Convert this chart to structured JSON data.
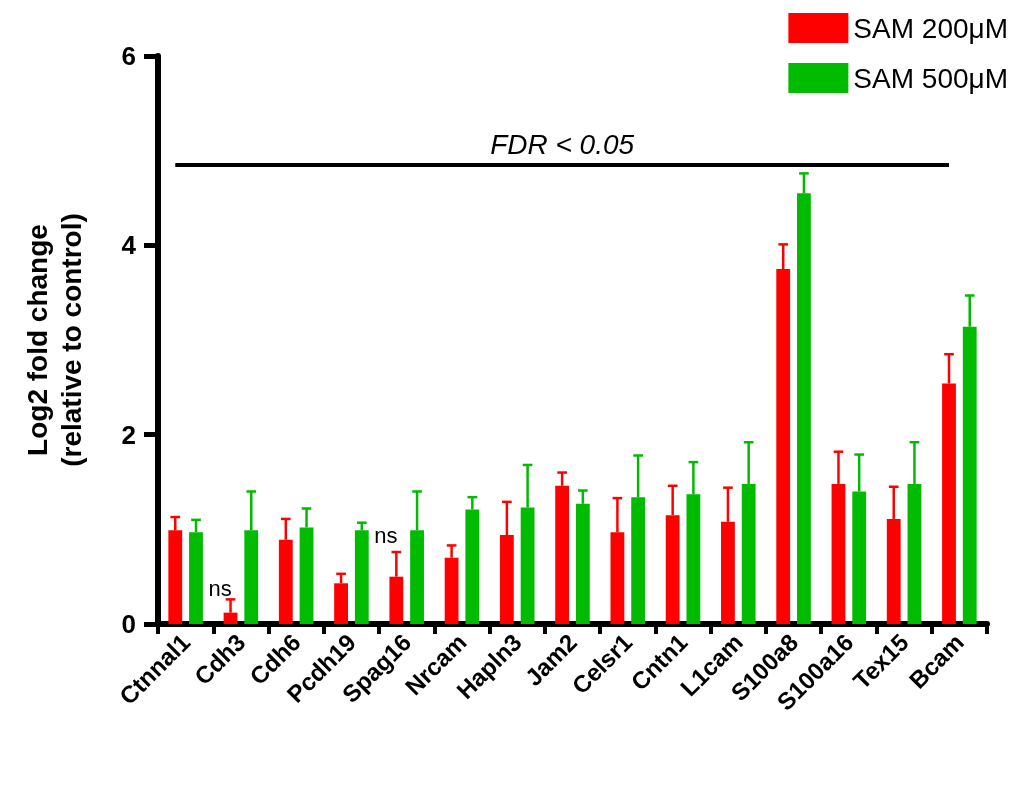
{
  "chart_data": {
    "type": "bar",
    "ylabel": "Log2 fold change\n(relative to control)",
    "categories": [
      "Ctnnal1",
      "Cdh3",
      "Cdh6",
      "Pcdh19",
      "Spag16",
      "Nrcam",
      "Hapln3",
      "Jam2",
      "Celsr1",
      "Cntn1",
      "L1cam",
      "S100a8",
      "S100a16",
      "Tex15",
      "Bcam"
    ],
    "series": [
      {
        "name": "SAM 200μM",
        "color": "#ff0000",
        "values": [
          0.99,
          0.12,
          0.89,
          0.43,
          0.5,
          0.7,
          0.94,
          1.46,
          0.97,
          1.15,
          1.08,
          3.75,
          1.48,
          1.11,
          2.54
        ],
        "errors": [
          [
            0.99,
            1.13
          ],
          [
            0.12,
            0.26
          ],
          [
            0.89,
            1.11
          ],
          [
            0.43,
            0.53
          ],
          [
            0.5,
            0.76
          ],
          [
            0.7,
            0.83
          ],
          [
            0.94,
            1.29
          ],
          [
            1.46,
            1.6
          ],
          [
            0.97,
            1.33
          ],
          [
            1.15,
            1.46
          ],
          [
            1.08,
            1.44
          ],
          [
            3.75,
            4.01
          ],
          [
            1.48,
            1.82
          ],
          [
            1.11,
            1.45
          ],
          [
            2.54,
            2.85
          ]
        ]
      },
      {
        "name": "SAM 500μM",
        "color": "#00bb00",
        "values": [
          0.97,
          0.99,
          1.02,
          0.99,
          0.99,
          1.21,
          1.23,
          1.27,
          1.34,
          1.37,
          1.48,
          4.55,
          1.4,
          1.48,
          3.14
        ],
        "errors": [
          [
            0.97,
            1.1
          ],
          [
            0.99,
            1.4
          ],
          [
            1.02,
            1.22
          ],
          [
            0.99,
            1.07
          ],
          [
            0.99,
            1.4
          ],
          [
            1.21,
            1.34
          ],
          [
            1.23,
            1.68
          ],
          [
            1.27,
            1.41
          ],
          [
            1.34,
            1.78
          ],
          [
            1.37,
            1.71
          ],
          [
            1.48,
            1.92
          ],
          [
            4.55,
            4.76
          ],
          [
            1.4,
            1.79
          ],
          [
            1.48,
            1.92
          ],
          [
            3.14,
            3.47
          ]
        ]
      }
    ],
    "ref_lines": [
      {
        "axis": "y",
        "value": 4.85,
        "label": "FDR < 0.05",
        "color": "#000000",
        "line_style": "solid"
      }
    ],
    "annotations": [
      {
        "text": "ns",
        "x": "Cdh3",
        "y": 0.38
      },
      {
        "text": "ns",
        "x": "Spag16",
        "y": 0.94
      }
    ],
    "ylim": [
      0,
      6
    ],
    "yticks": [
      0,
      2,
      4,
      6
    ],
    "grid": false,
    "legend": "top right"
  }
}
